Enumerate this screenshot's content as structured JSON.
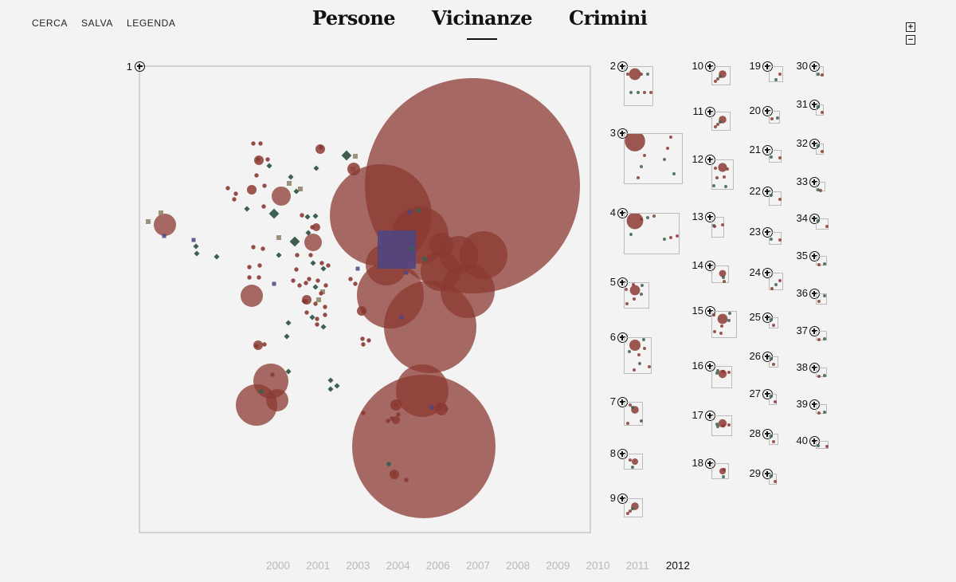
{
  "menu": {
    "search": "CERCA",
    "save": "SALVA",
    "legend": "LEGENDA"
  },
  "tabs": [
    {
      "label": "Persone",
      "active": false
    },
    {
      "label": "Vicinanze",
      "active": true
    },
    {
      "label": "Crimini",
      "active": false
    }
  ],
  "zoom": {
    "in": "+",
    "out": "−"
  },
  "main_cluster_label": "1",
  "clusters": [
    {
      "label": "2"
    },
    {
      "label": "3"
    },
    {
      "label": "4"
    },
    {
      "label": "5"
    },
    {
      "label": "6"
    },
    {
      "label": "7"
    },
    {
      "label": "8"
    },
    {
      "label": "9"
    },
    {
      "label": "10"
    },
    {
      "label": "11"
    },
    {
      "label": "12"
    },
    {
      "label": "13"
    },
    {
      "label": "14"
    },
    {
      "label": "15"
    },
    {
      "label": "16"
    },
    {
      "label": "17"
    },
    {
      "label": "18"
    },
    {
      "label": "19"
    },
    {
      "label": "20"
    },
    {
      "label": "21"
    },
    {
      "label": "22"
    },
    {
      "label": "23"
    },
    {
      "label": "24"
    },
    {
      "label": "25"
    },
    {
      "label": "26"
    },
    {
      "label": "27"
    },
    {
      "label": "28"
    },
    {
      "label": "29"
    },
    {
      "label": "30"
    },
    {
      "label": "31"
    },
    {
      "label": "32"
    },
    {
      "label": "33"
    },
    {
      "label": "34"
    },
    {
      "label": "35"
    },
    {
      "label": "36"
    },
    {
      "label": "37"
    },
    {
      "label": "38"
    },
    {
      "label": "39"
    },
    {
      "label": "40"
    }
  ],
  "years": [
    "2000",
    "2001",
    "2003",
    "2004",
    "2006",
    "2007",
    "2008",
    "2009",
    "2010",
    "2011",
    "2012"
  ],
  "current_year": "2012",
  "colors": {
    "crime": "#8b3a32",
    "person": "#3d5e50",
    "place": "#8c8065",
    "org": "#4a4585",
    "background": "#f2f3f2"
  }
}
